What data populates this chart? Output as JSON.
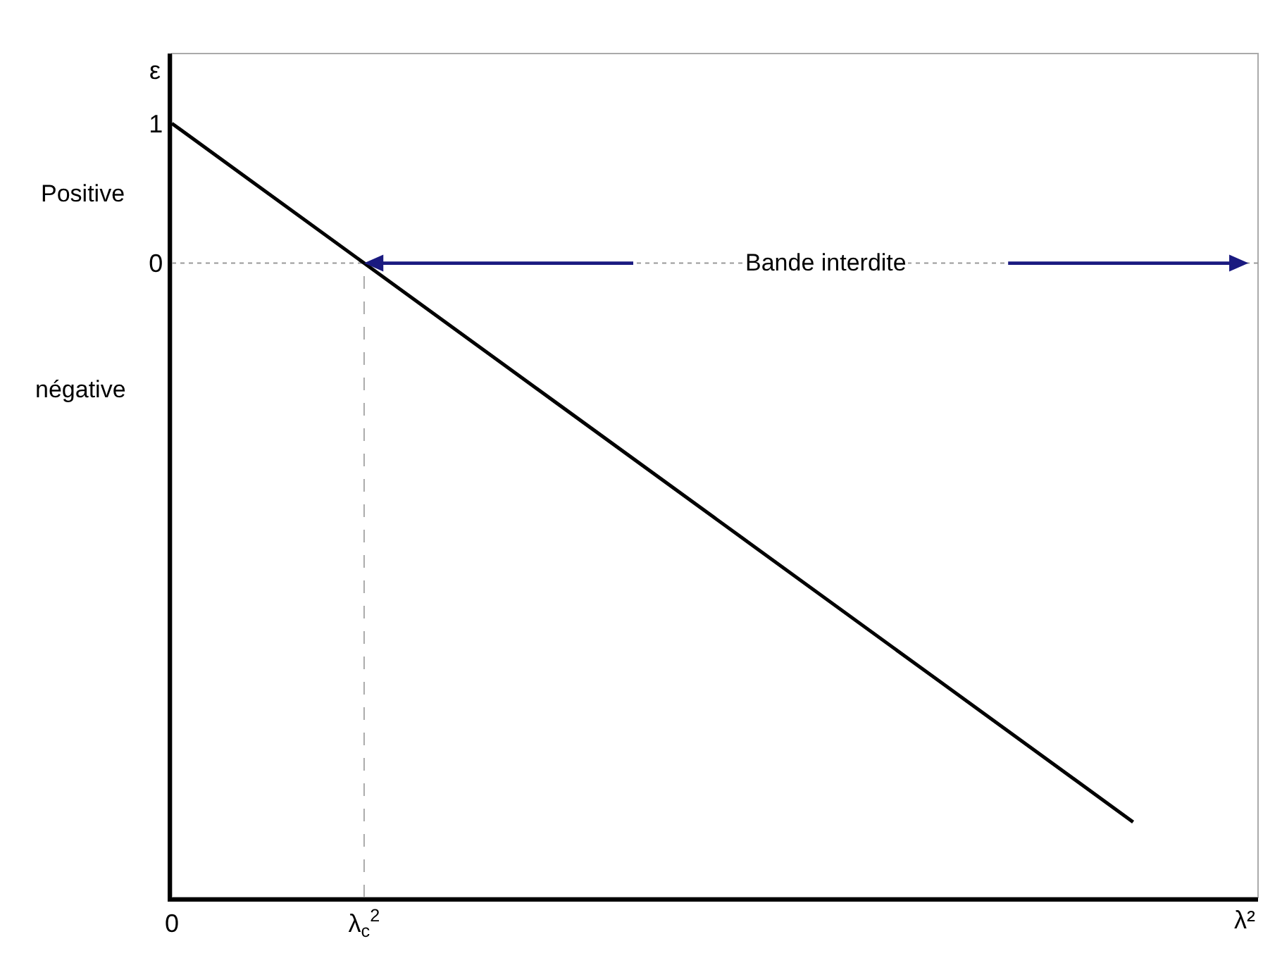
{
  "chart_data": {
    "type": "line",
    "xlabel": "λ²",
    "ylabel": "ε",
    "categories": [
      "0",
      "λ$_{c}$$^{2}$",
      null,
      null,
      null,
      null
    ],
    "values": [
      1,
      0,
      -1,
      -2,
      -3,
      -4
    ],
    "color": "#000000",
    "ylim": [
      -4.54,
      1.5
    ],
    "yticks": [
      0,
      1
    ],
    "grid": false,
    "legend": false,
    "marker": "none",
    "line_style": "solid",
    "ref_lines": [
      {
        "axis": "y",
        "value": 0,
        "color": "#999999",
        "line_style": "dotted"
      },
      {
        "axis": "x",
        "value": "λ$_{c}$$^{2}$",
        "color": "#aaaaaa",
        "line_style": "dashed"
      }
    ],
    "annotations": [
      {
        "text": "Bande interdite",
        "y": 0
      },
      "Positive",
      "négative"
    ]
  }
}
